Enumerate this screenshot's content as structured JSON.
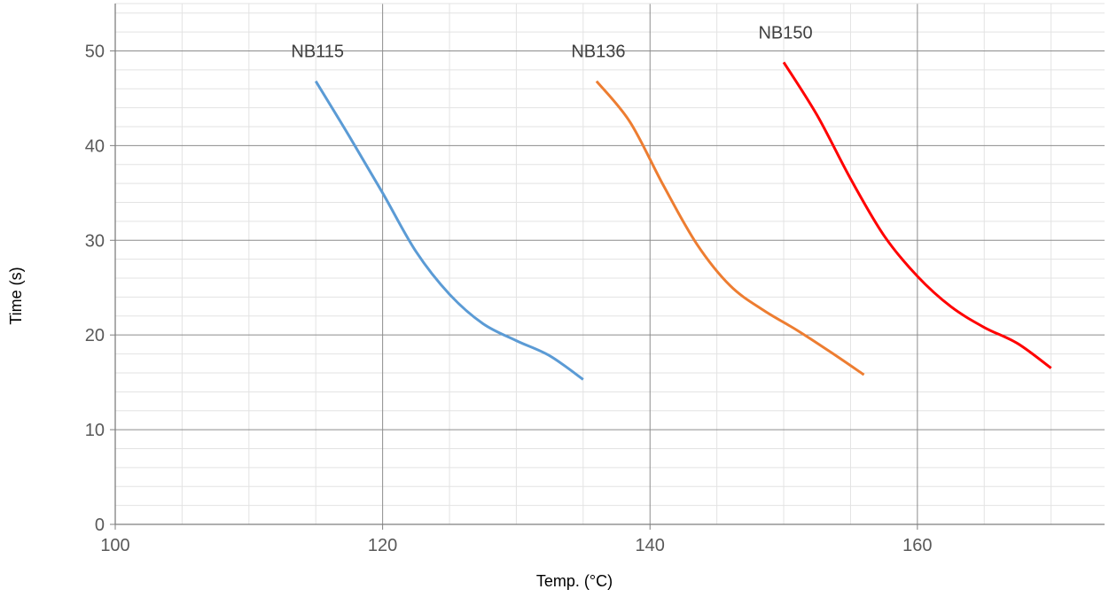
{
  "chart_data": {
    "type": "line",
    "xlabel": "Temp. (°C)",
    "ylabel": "Time (s)",
    "xlim": [
      100,
      174
    ],
    "ylim": [
      0,
      55
    ],
    "x_ticks": [
      100,
      120,
      140,
      160
    ],
    "y_ticks": [
      0,
      10,
      20,
      30,
      40,
      50
    ],
    "x_minor_step": 5,
    "y_minor_step": 2,
    "grid": true,
    "series": [
      {
        "name": "NB115",
        "color": "#5b9bd5",
        "points": [
          [
            115,
            46.8
          ],
          [
            117.5,
            41
          ],
          [
            120,
            35
          ],
          [
            122.5,
            28.8
          ],
          [
            125,
            24.3
          ],
          [
            127.5,
            21.2
          ],
          [
            130,
            19.4
          ],
          [
            132.5,
            17.8
          ],
          [
            135,
            15.3
          ]
        ]
      },
      {
        "name": "NB136",
        "color": "#ed7d31",
        "points": [
          [
            136,
            46.8
          ],
          [
            138.5,
            42.5
          ],
          [
            141,
            35.8
          ],
          [
            143.5,
            29.6
          ],
          [
            146,
            25.2
          ],
          [
            148.5,
            22.6
          ],
          [
            151,
            20.5
          ],
          [
            153.5,
            18.2
          ],
          [
            156,
            15.8
          ]
        ]
      },
      {
        "name": "NB150",
        "color": "#ff0000",
        "points": [
          [
            150,
            48.8
          ],
          [
            152.5,
            43.2
          ],
          [
            155,
            36.5
          ],
          [
            157.5,
            30.5
          ],
          [
            160,
            26.2
          ],
          [
            162.5,
            23
          ],
          [
            165,
            20.8
          ],
          [
            167.5,
            19.1
          ],
          [
            170,
            16.5
          ]
        ]
      }
    ]
  }
}
